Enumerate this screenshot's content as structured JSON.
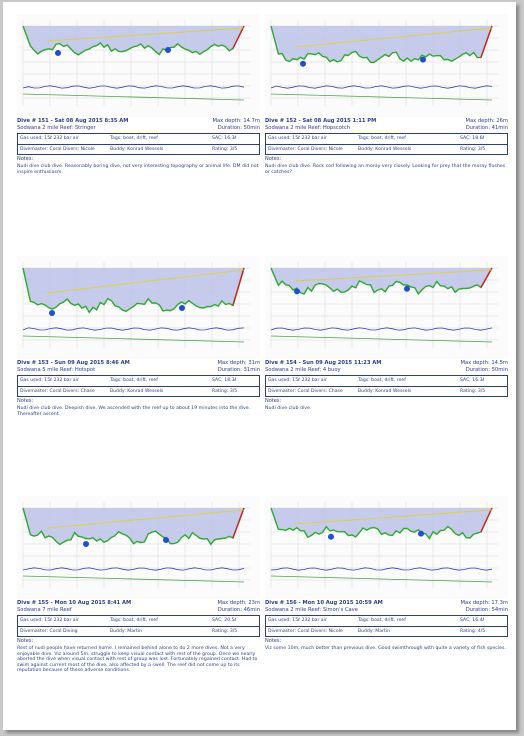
{
  "dives": [
    {
      "title": "Dive # 151 - Sat 08 Aug 2015 8:35 AM",
      "max_depth": "Max depth: 14.7m",
      "location": "Sodwana 2 mile Reef: Stringer",
      "duration": "Duration: 50min",
      "gas": "Gas used: 15ℓ 232 bar air",
      "tags": "Tags: boat, drift, reef",
      "sac": "SAC: 16.3ℓ",
      "divemaster": "Divemaster: Coral Divers: Nicole",
      "buddy": "Buddy: Konrad Wessels",
      "rating": "Rating: 3/5",
      "notes_label": "Notes:",
      "notes": "Nudi dive club dive. Reasonably boring dive, not very interesting topography or animal life. DM did not inspire enthusiasm."
    },
    {
      "title": "Dive # 152 - Sat 08 Aug 2015 1:11 PM",
      "max_depth": "Max depth: 26m",
      "location": "Sodwana 2 mile Reef: Hopscotch",
      "duration": "Duration: 41min",
      "gas": "Gas used: 15ℓ 232 bar air",
      "tags": "Tags: boat, drift, reef",
      "sac": "SAC: 18.6ℓ",
      "divemaster": "Divemaster: Coral Divers: Nicole",
      "buddy": "Buddy: Konrad Wessels",
      "rating": "Rating: 3/5",
      "notes_label": "Notes:",
      "notes": "Nudi dive club dive. Rock cod following an moray very closely. Looking for prey that the moray flushes or catches?"
    },
    {
      "title": "Dive # 153 - Sun 09 Aug 2015 8:46 AM",
      "max_depth": "Max depth: 31m",
      "location": "Sodwana 5 mile Reef: Hotspot",
      "duration": "Duration: 31min",
      "gas": "Gas used: 15ℓ 232 bar air",
      "tags": "Tags: boat, drift, reef",
      "sac": "SAC: 18.3ℓ",
      "divemaster": "Divemaster: Coral Divers: Chase",
      "buddy": "Buddy: Konrad Wessels",
      "rating": "Rating: 3/5",
      "notes_label": "Notes:",
      "notes": "Nudi dive club dive. Deepish dive. We ascended with the reef up to about 19 minutes into the dive. Thereafter ascent."
    },
    {
      "title": "Dive # 154 - Sun 09 Aug 2015 11:23 AM",
      "max_depth": "Max depth: 14.5m",
      "location": "Sodwana 2 mile Reef: 4 buoy",
      "duration": "Duration: 50min",
      "gas": "Gas used: 15ℓ 232 bar air",
      "tags": "Tags: boat, drift, reef",
      "sac": "SAC: 16.3ℓ",
      "divemaster": "Divemaster: Coral Divers: Chase",
      "buddy": "Buddy: Konrad Wessels",
      "rating": "Rating: 3/5",
      "notes_label": "Notes:",
      "notes": "Nudi dive club dive."
    },
    {
      "title": "Dive # 155 - Mon 10 Aug 2015 8:41 AM",
      "max_depth": "Max depth: 23m",
      "location": "Sodwana 7 mile Reef",
      "duration": "Duration: 46min",
      "gas": "Gas used: 15ℓ 232 bar air",
      "tags": "Tags: boat, drift, reef",
      "sac": "SAC: 20.5ℓ",
      "divemaster": "Divemaster: Coral Diving",
      "buddy": "Buddy: Martin",
      "rating": "Rating: 3/5",
      "notes_label": "Notes:",
      "notes": "Rest of nudi people have returned home. I remained behind alone to do 2 more dives. Not a very enjoyable dive. Viz around 5m, struggle to keep visual contact with rest of the group. Once we nearly aborted the dive when visual contact with rest of group was lost. Fortunately regained contact. Had to swim against current most of the dive, also affected by a swell. The reef did not come up to its reputation because of these adverse conditions."
    },
    {
      "title": "Dive # 156 - Mon 10 Aug 2015 10:59 AM",
      "max_depth": "Max depth: 17.3m",
      "location": "Sodwana 2 mile Reef: Simon's Cave",
      "duration": "Duration: 54min",
      "gas": "Gas used: 15ℓ 232 bar air",
      "tags": "Tags: boat, drift, reef",
      "sac": "SAC: 16.4ℓ",
      "divemaster": "Divemaster: Coral Divers: Nicole",
      "buddy": "Buddy: Martin",
      "rating": "Rating: 4/5",
      "notes_label": "Notes:",
      "notes": "Viz some 10m, much better than previous dive. Good swimthrough with quite a variety of fish species."
    }
  ],
  "chart_colors": {
    "water": "#b9bfe8",
    "profile_green": "#2fa82f",
    "profile_yellow": "#e0d020",
    "profile_red": "#d02020",
    "pressure": "#3040c0",
    "gas": "#50a050",
    "grid": "#d0d0d0"
  }
}
